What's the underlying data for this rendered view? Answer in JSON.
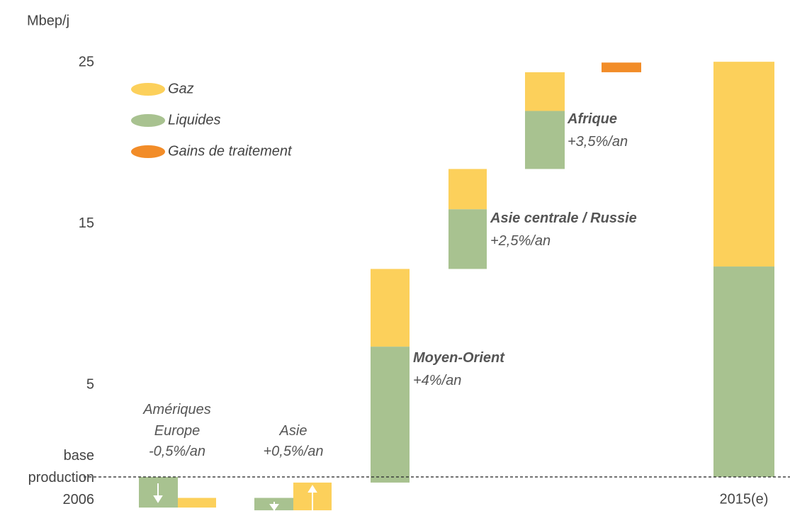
{
  "chart_data": {
    "type": "range_bar",
    "y_label": "Mbep/j",
    "ylim": [
      -2.8,
      27.1
    ],
    "yticks": [
      5,
      15,
      25,
      {
        "value": -0.7,
        "label": "base production 2006"
      }
    ],
    "categories": [
      "Amériques Europe",
      "Asie",
      "Moyen-Orient",
      "Asie centrale / Russie",
      "Afrique",
      null,
      "2015(e)"
    ],
    "growth": [
      "-0,5%/an",
      "+0,5%/an",
      "+4%/an",
      "+2,5%/an",
      "+3,5%/an",
      null,
      null
    ],
    "series": [
      {
        "name": "Gaz",
        "color": "#fcd05b",
        "low": [
          -2.6,
          -2.8,
          7.38,
          15.9,
          22.0,
          null,
          12.35
        ],
        "high": [
          -2.0,
          -1.05,
          12.2,
          18.4,
          24.4,
          null,
          25.05
        ]
      },
      {
        "name": "Liquides",
        "color": "#a8c290",
        "low": [
          -2.6,
          -2.8,
          -1.05,
          12.2,
          18.4,
          null,
          -0.7
        ],
        "high": [
          -0.7,
          -2.0,
          7.38,
          15.9,
          22.0,
          null,
          12.35
        ]
      },
      {
        "name": "Gains de traitement",
        "color": "#f28c28",
        "low": [
          null,
          null,
          null,
          null,
          null,
          24.4,
          null
        ],
        "high": [
          null,
          null,
          null,
          null,
          null,
          25.0,
          null
        ]
      }
    ]
  }
}
